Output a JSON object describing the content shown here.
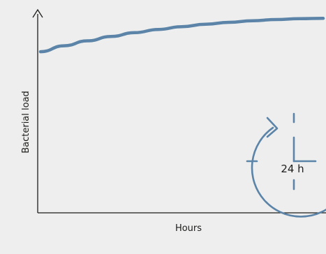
{
  "chart_data": {
    "type": "line",
    "title": "",
    "xlabel": "Hours",
    "ylabel": "Bacterial load",
    "x_ticks": [],
    "y_ticks": [],
    "grid": false,
    "legend": "none",
    "xlim": [
      0,
      24
    ],
    "ylim": [
      0,
      1
    ],
    "series": [
      {
        "color": "#5b84a8",
        "x": [
          0,
          2,
          4,
          6,
          8,
          10,
          12,
          14,
          16,
          18,
          20,
          22,
          24
        ],
        "y": [
          0.81,
          0.84,
          0.865,
          0.887,
          0.906,
          0.922,
          0.936,
          0.948,
          0.958,
          0.966,
          0.972,
          0.976,
          0.978
        ]
      }
    ]
  },
  "clock": {
    "icon": "clock-24h-icon",
    "label": "24 h"
  },
  "colors": {
    "background": "#edeeed",
    "axis": "#1d1d1b",
    "series": "#5b84a8"
  }
}
